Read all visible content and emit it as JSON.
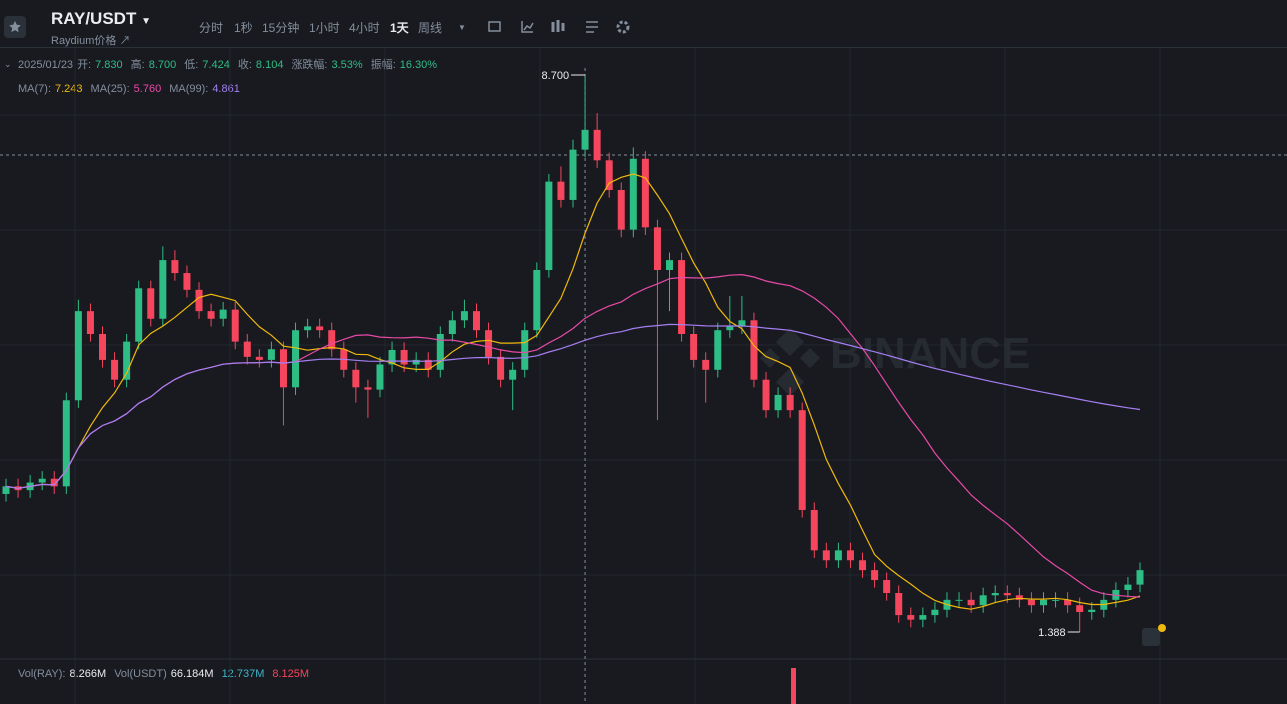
{
  "header": {
    "symbol": "RAY/USDT",
    "subtitle": "Raydium价格 ↗",
    "intervals": [
      "分时",
      "1秒",
      "15分钟",
      "1小时",
      "4小时",
      "1天",
      "周线"
    ],
    "active_interval": 5
  },
  "ohlc_bar": {
    "date": "2025/01/23",
    "items": [
      {
        "label": "开:",
        "value": "7.830"
      },
      {
        "label": "高:",
        "value": "8.700"
      },
      {
        "label": "低:",
        "value": "7.424"
      },
      {
        "label": "收:",
        "value": "8.104"
      },
      {
        "label": "涨跌幅:",
        "value": "3.53%"
      },
      {
        "label": "振幅:",
        "value": "16.30%"
      }
    ]
  },
  "ma_bar": [
    {
      "label": "MA(7):",
      "value": "7.243",
      "period": 7,
      "color": "#f0b90b"
    },
    {
      "label": "MA(25):",
      "value": "5.760",
      "period": 25,
      "color": "#e84aa8"
    },
    {
      "label": "MA(99):",
      "value": "4.861",
      "period": 99,
      "color": "#a57ff2"
    }
  ],
  "vol_bar": [
    {
      "label": "Vol(RAY):",
      "value": "8.266M",
      "color": "#eaecef"
    },
    {
      "label": "Vol(USDT)",
      "value": "66.184M",
      "color": "#eaecef"
    },
    {
      "value": "12.737M",
      "color": "#3db6c9"
    },
    {
      "value": "8.125M",
      "color": "#f6465d"
    }
  ],
  "chart": {
    "high_label": "8.700",
    "low_label": "1.388",
    "watermark": "BINANCE",
    "up_color": "#2ebd85",
    "down_color": "#f6465d",
    "candles": [
      [
        3.2,
        3.4,
        3.1,
        3.3
      ],
      [
        3.3,
        3.4,
        3.15,
        3.25
      ],
      [
        3.25,
        3.45,
        3.15,
        3.35
      ],
      [
        3.35,
        3.5,
        3.25,
        3.4
      ],
      [
        3.4,
        3.5,
        3.2,
        3.3
      ],
      [
        3.3,
        4.53,
        3.2,
        4.43
      ],
      [
        4.43,
        5.75,
        4.33,
        5.6
      ],
      [
        5.6,
        5.7,
        5.2,
        5.3
      ],
      [
        5.3,
        5.4,
        4.86,
        4.96
      ],
      [
        4.96,
        5.06,
        4.6,
        4.7
      ],
      [
        4.7,
        5.3,
        4.6,
        5.2
      ],
      [
        5.2,
        6.0,
        5.1,
        5.9
      ],
      [
        5.9,
        6.0,
        5.4,
        5.5
      ],
      [
        5.5,
        6.45,
        5.4,
        6.27
      ],
      [
        6.27,
        6.4,
        6.0,
        6.1
      ],
      [
        6.1,
        6.2,
        5.78,
        5.88
      ],
      [
        5.88,
        5.98,
        5.5,
        5.6
      ],
      [
        5.6,
        5.7,
        5.4,
        5.5
      ],
      [
        5.5,
        5.72,
        5.4,
        5.62
      ],
      [
        5.62,
        5.72,
        5.1,
        5.2
      ],
      [
        5.2,
        5.3,
        4.9,
        5.0
      ],
      [
        5.0,
        5.1,
        4.86,
        4.96
      ],
      [
        4.96,
        5.2,
        4.86,
        5.1
      ],
      [
        5.1,
        5.2,
        4.1,
        4.6
      ],
      [
        4.6,
        5.45,
        4.5,
        5.35
      ],
      [
        5.35,
        5.5,
        5.25,
        5.4
      ],
      [
        5.4,
        5.5,
        5.25,
        5.35
      ],
      [
        5.35,
        5.45,
        5.0,
        5.1
      ],
      [
        5.1,
        5.2,
        4.73,
        4.83
      ],
      [
        4.83,
        4.93,
        4.4,
        4.6
      ],
      [
        4.6,
        4.7,
        4.2,
        4.57
      ],
      [
        4.57,
        5.0,
        4.47,
        4.9
      ],
      [
        4.9,
        5.2,
        4.8,
        5.09
      ],
      [
        5.09,
        5.19,
        4.8,
        4.9
      ],
      [
        4.9,
        5.06,
        4.8,
        4.96
      ],
      [
        4.96,
        5.06,
        4.73,
        4.83
      ],
      [
        4.83,
        5.4,
        4.73,
        5.3
      ],
      [
        5.3,
        5.6,
        5.2,
        5.48
      ],
      [
        5.48,
        5.75,
        5.38,
        5.6
      ],
      [
        5.6,
        5.7,
        5.25,
        5.35
      ],
      [
        5.35,
        5.45,
        4.9,
        5.0
      ],
      [
        5.0,
        5.1,
        4.6,
        4.7
      ],
      [
        4.7,
        4.93,
        4.3,
        4.83
      ],
      [
        4.83,
        5.45,
        4.73,
        5.35
      ],
      [
        5.35,
        6.24,
        5.25,
        6.14
      ],
      [
        6.14,
        7.4,
        6.04,
        7.3
      ],
      [
        7.3,
        7.5,
        6.96,
        7.06
      ],
      [
        7.06,
        7.85,
        6.96,
        7.72
      ],
      [
        7.72,
        8.7,
        7.62,
        7.98
      ],
      [
        7.98,
        8.2,
        7.48,
        7.58
      ],
      [
        7.58,
        7.68,
        7.09,
        7.19
      ],
      [
        7.19,
        7.29,
        6.57,
        6.67
      ],
      [
        6.67,
        7.75,
        6.57,
        7.6
      ],
      [
        7.6,
        7.7,
        6.6,
        6.7
      ],
      [
        6.7,
        6.8,
        4.17,
        6.14
      ],
      [
        6.14,
        6.37,
        5.6,
        6.27
      ],
      [
        6.27,
        6.37,
        5.2,
        5.3
      ],
      [
        5.3,
        5.4,
        4.86,
        4.96
      ],
      [
        4.96,
        5.06,
        4.4,
        4.83
      ],
      [
        4.83,
        5.45,
        4.73,
        5.35
      ],
      [
        5.35,
        5.8,
        5.25,
        5.4
      ],
      [
        5.4,
        5.8,
        5.3,
        5.48
      ],
      [
        5.48,
        5.58,
        4.6,
        4.7
      ],
      [
        4.7,
        4.8,
        4.2,
        4.3
      ],
      [
        4.3,
        4.6,
        4.2,
        4.5
      ],
      [
        4.5,
        4.6,
        4.2,
        4.3
      ],
      [
        4.3,
        4.4,
        2.89,
        2.99
      ],
      [
        2.99,
        3.09,
        2.36,
        2.46
      ],
      [
        2.46,
        2.56,
        2.23,
        2.33
      ],
      [
        2.33,
        2.56,
        2.23,
        2.46
      ],
      [
        2.46,
        2.56,
        2.23,
        2.33
      ],
      [
        2.33,
        2.43,
        2.1,
        2.2
      ],
      [
        2.2,
        2.3,
        1.97,
        2.07
      ],
      [
        2.07,
        2.17,
        1.8,
        1.9
      ],
      [
        1.9,
        2.0,
        1.51,
        1.61
      ],
      [
        1.61,
        1.71,
        1.45,
        1.55
      ],
      [
        1.55,
        1.71,
        1.45,
        1.61
      ],
      [
        1.61,
        1.78,
        1.51,
        1.68
      ],
      [
        1.68,
        1.91,
        1.58,
        1.81
      ],
      [
        1.81,
        1.91,
        1.71,
        1.81
      ],
      [
        1.81,
        1.91,
        1.64,
        1.74
      ],
      [
        1.74,
        1.97,
        1.64,
        1.87
      ],
      [
        1.87,
        2.0,
        1.77,
        1.9
      ],
      [
        1.9,
        2.0,
        1.77,
        1.87
      ],
      [
        1.87,
        1.97,
        1.71,
        1.81
      ],
      [
        1.81,
        1.91,
        1.64,
        1.74
      ],
      [
        1.74,
        1.91,
        1.64,
        1.81
      ],
      [
        1.81,
        1.91,
        1.71,
        1.81
      ],
      [
        1.81,
        1.91,
        1.64,
        1.74
      ],
      [
        1.74,
        1.84,
        1.388,
        1.65
      ],
      [
        1.65,
        1.78,
        1.55,
        1.68
      ],
      [
        1.68,
        1.91,
        1.58,
        1.81
      ],
      [
        1.81,
        2.04,
        1.71,
        1.94
      ],
      [
        1.94,
        2.11,
        1.84,
        2.01
      ],
      [
        2.01,
        2.3,
        1.91,
        2.2
      ]
    ]
  }
}
